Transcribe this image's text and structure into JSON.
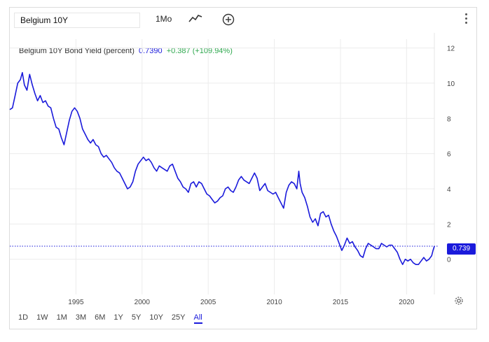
{
  "toolbar": {
    "symbol": "Belgium 10Y",
    "interval": "1Mo",
    "line_icon": "line-chart-icon",
    "compare_icon": "plus-circle-icon",
    "menu_icon": "more-vertical-icon"
  },
  "legend": {
    "name": "Belgium 10Y Bond Yield (percent)",
    "value": "0.7390",
    "change": "+0.387 (+109.94%)"
  },
  "last_value_label": "0.739",
  "ranges": [
    {
      "label": "1D",
      "active": false
    },
    {
      "label": "1W",
      "active": false
    },
    {
      "label": "1M",
      "active": false
    },
    {
      "label": "3M",
      "active": false
    },
    {
      "label": "6M",
      "active": false
    },
    {
      "label": "1Y",
      "active": false
    },
    {
      "label": "5Y",
      "active": false
    },
    {
      "label": "10Y",
      "active": false
    },
    {
      "label": "25Y",
      "active": false
    },
    {
      "label": "All",
      "active": true
    }
  ],
  "colors": {
    "series": "#1a1adb",
    "grid": "#ececec",
    "positive": "#2fa84f"
  },
  "chart_data": {
    "type": "line",
    "title": "Belgium 10Y Bond Yield (percent)",
    "xlabel": "",
    "ylabel": "",
    "x_ticks": [
      "1995",
      "2000",
      "2005",
      "2010",
      "2015",
      "2020"
    ],
    "y_ticks": [
      0,
      2,
      4,
      6,
      8,
      10,
      12
    ],
    "ylim": [
      -2,
      12.5
    ],
    "xlim": [
      1990.0,
      2022.1
    ],
    "grid": true,
    "y_axis_side": "right",
    "last_value": 0.739,
    "series": [
      {
        "points": [
          [
            1990.0,
            8.5
          ],
          [
            1990.2,
            8.6
          ],
          [
            1990.4,
            9.3
          ],
          [
            1990.6,
            10.0
          ],
          [
            1990.8,
            10.2
          ],
          [
            1990.95,
            10.6
          ],
          [
            1991.1,
            9.9
          ],
          [
            1991.3,
            9.6
          ],
          [
            1991.5,
            10.5
          ],
          [
            1991.7,
            9.9
          ],
          [
            1991.9,
            9.4
          ],
          [
            1992.1,
            9.0
          ],
          [
            1992.3,
            9.3
          ],
          [
            1992.5,
            8.9
          ],
          [
            1992.7,
            9.0
          ],
          [
            1992.9,
            8.7
          ],
          [
            1993.1,
            8.6
          ],
          [
            1993.3,
            8.0
          ],
          [
            1993.5,
            7.5
          ],
          [
            1993.7,
            7.4
          ],
          [
            1993.9,
            6.9
          ],
          [
            1994.1,
            6.5
          ],
          [
            1994.3,
            7.2
          ],
          [
            1994.5,
            7.9
          ],
          [
            1994.7,
            8.4
          ],
          [
            1994.9,
            8.6
          ],
          [
            1995.1,
            8.4
          ],
          [
            1995.3,
            8.0
          ],
          [
            1995.5,
            7.4
          ],
          [
            1995.7,
            7.1
          ],
          [
            1995.9,
            6.8
          ],
          [
            1996.1,
            6.6
          ],
          [
            1996.3,
            6.8
          ],
          [
            1996.5,
            6.5
          ],
          [
            1996.7,
            6.4
          ],
          [
            1996.9,
            6.0
          ],
          [
            1997.1,
            5.8
          ],
          [
            1997.3,
            5.9
          ],
          [
            1997.5,
            5.7
          ],
          [
            1997.7,
            5.5
          ],
          [
            1997.9,
            5.2
          ],
          [
            1998.1,
            5.0
          ],
          [
            1998.3,
            4.9
          ],
          [
            1998.5,
            4.6
          ],
          [
            1998.7,
            4.3
          ],
          [
            1998.9,
            4.0
          ],
          [
            1999.1,
            4.1
          ],
          [
            1999.3,
            4.4
          ],
          [
            1999.5,
            5.0
          ],
          [
            1999.7,
            5.4
          ],
          [
            1999.9,
            5.6
          ],
          [
            2000.1,
            5.8
          ],
          [
            2000.3,
            5.6
          ],
          [
            2000.5,
            5.7
          ],
          [
            2000.7,
            5.5
          ],
          [
            2000.9,
            5.2
          ],
          [
            2001.1,
            5.0
          ],
          [
            2001.3,
            5.3
          ],
          [
            2001.5,
            5.2
          ],
          [
            2001.7,
            5.1
          ],
          [
            2001.9,
            5.0
          ],
          [
            2002.1,
            5.3
          ],
          [
            2002.3,
            5.4
          ],
          [
            2002.5,
            5.0
          ],
          [
            2002.7,
            4.6
          ],
          [
            2002.9,
            4.4
          ],
          [
            2003.1,
            4.1
          ],
          [
            2003.3,
            4.0
          ],
          [
            2003.5,
            3.8
          ],
          [
            2003.7,
            4.3
          ],
          [
            2003.9,
            4.4
          ],
          [
            2004.1,
            4.1
          ],
          [
            2004.3,
            4.4
          ],
          [
            2004.5,
            4.3
          ],
          [
            2004.7,
            4.0
          ],
          [
            2004.9,
            3.7
          ],
          [
            2005.1,
            3.6
          ],
          [
            2005.3,
            3.4
          ],
          [
            2005.5,
            3.2
          ],
          [
            2005.7,
            3.3
          ],
          [
            2005.9,
            3.5
          ],
          [
            2006.1,
            3.6
          ],
          [
            2006.3,
            4.0
          ],
          [
            2006.5,
            4.1
          ],
          [
            2006.7,
            3.9
          ],
          [
            2006.9,
            3.8
          ],
          [
            2007.1,
            4.1
          ],
          [
            2007.3,
            4.5
          ],
          [
            2007.5,
            4.7
          ],
          [
            2007.7,
            4.5
          ],
          [
            2007.9,
            4.4
          ],
          [
            2008.1,
            4.3
          ],
          [
            2008.3,
            4.6
          ],
          [
            2008.5,
            4.9
          ],
          [
            2008.7,
            4.6
          ],
          [
            2008.9,
            3.9
          ],
          [
            2009.1,
            4.1
          ],
          [
            2009.3,
            4.3
          ],
          [
            2009.5,
            3.9
          ],
          [
            2009.7,
            3.8
          ],
          [
            2009.9,
            3.7
          ],
          [
            2010.1,
            3.8
          ],
          [
            2010.3,
            3.5
          ],
          [
            2010.5,
            3.2
          ],
          [
            2010.7,
            2.9
          ],
          [
            2010.9,
            3.8
          ],
          [
            2011.1,
            4.2
          ],
          [
            2011.3,
            4.4
          ],
          [
            2011.5,
            4.3
          ],
          [
            2011.7,
            4.0
          ],
          [
            2011.85,
            5.0
          ],
          [
            2011.95,
            4.3
          ],
          [
            2012.1,
            3.8
          ],
          [
            2012.3,
            3.5
          ],
          [
            2012.5,
            3.0
          ],
          [
            2012.7,
            2.4
          ],
          [
            2012.9,
            2.1
          ],
          [
            2013.1,
            2.3
          ],
          [
            2013.3,
            1.9
          ],
          [
            2013.5,
            2.6
          ],
          [
            2013.7,
            2.7
          ],
          [
            2013.9,
            2.4
          ],
          [
            2014.1,
            2.5
          ],
          [
            2014.3,
            2.0
          ],
          [
            2014.5,
            1.6
          ],
          [
            2014.7,
            1.3
          ],
          [
            2014.9,
            0.9
          ],
          [
            2015.1,
            0.5
          ],
          [
            2015.3,
            0.8
          ],
          [
            2015.5,
            1.2
          ],
          [
            2015.7,
            0.9
          ],
          [
            2015.9,
            1.0
          ],
          [
            2016.1,
            0.7
          ],
          [
            2016.3,
            0.5
          ],
          [
            2016.5,
            0.2
          ],
          [
            2016.7,
            0.1
          ],
          [
            2016.9,
            0.6
          ],
          [
            2017.1,
            0.9
          ],
          [
            2017.3,
            0.8
          ],
          [
            2017.5,
            0.7
          ],
          [
            2017.7,
            0.6
          ],
          [
            2017.9,
            0.6
          ],
          [
            2018.1,
            0.9
          ],
          [
            2018.3,
            0.8
          ],
          [
            2018.5,
            0.7
          ],
          [
            2018.7,
            0.8
          ],
          [
            2018.9,
            0.8
          ],
          [
            2019.1,
            0.6
          ],
          [
            2019.3,
            0.4
          ],
          [
            2019.5,
            0.0
          ],
          [
            2019.7,
            -0.3
          ],
          [
            2019.9,
            0.0
          ],
          [
            2020.1,
            -0.1
          ],
          [
            2020.3,
            0.0
          ],
          [
            2020.5,
            -0.2
          ],
          [
            2020.7,
            -0.3
          ],
          [
            2020.9,
            -0.3
          ],
          [
            2021.1,
            -0.1
          ],
          [
            2021.3,
            0.1
          ],
          [
            2021.5,
            -0.1
          ],
          [
            2021.7,
            0.0
          ],
          [
            2021.9,
            0.2
          ],
          [
            2022.0,
            0.5
          ],
          [
            2022.1,
            0.739
          ]
        ]
      }
    ]
  }
}
